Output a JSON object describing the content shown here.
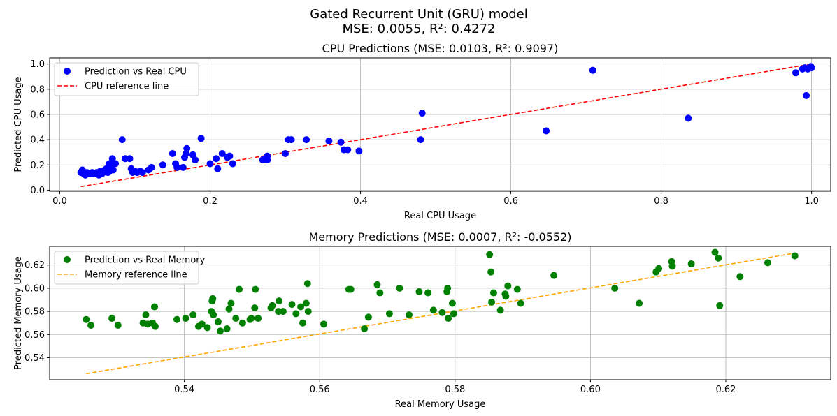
{
  "figure": {
    "suptitle_line1": "Gated Recurrent Unit (GRU) model",
    "suptitle_line2": "MSE: 0.0055, R²: 0.4272"
  },
  "chart_data": [
    {
      "type": "scatter",
      "title": "CPU Predictions (MSE: 0.0103, R²: 0.9097)",
      "xlabel": "Real CPU Usage",
      "ylabel": "Predicted CPU Usage",
      "xlim": [
        -0.0135,
        1.0255
      ],
      "ylim": [
        -0.0087,
        1.0478
      ],
      "xticks": [
        0.0,
        0.2,
        0.4,
        0.6,
        0.8,
        1.0
      ],
      "xtick_labels": [
        "0.0",
        "0.2",
        "0.4",
        "0.6",
        "0.8",
        "1.0"
      ],
      "yticks": [
        0.0,
        0.2,
        0.4,
        0.6,
        0.8,
        1.0
      ],
      "ytick_labels": [
        "0.0",
        "0.2",
        "0.4",
        "0.6",
        "0.8",
        "1.0"
      ],
      "grid": true,
      "legend_position": "upper-left",
      "series": [
        {
          "name": "Prediction vs Real CPU",
          "kind": "scatter",
          "color": "#0000ff",
          "points": [
            [
              0.028,
              0.14
            ],
            [
              0.03,
              0.16
            ],
            [
              0.032,
              0.13
            ],
            [
              0.034,
              0.12
            ],
            [
              0.036,
              0.14
            ],
            [
              0.04,
              0.13
            ],
            [
              0.043,
              0.14
            ],
            [
              0.046,
              0.13
            ],
            [
              0.049,
              0.14
            ],
            [
              0.052,
              0.12
            ],
            [
              0.054,
              0.15
            ],
            [
              0.056,
              0.13
            ],
            [
              0.058,
              0.14
            ],
            [
              0.06,
              0.15
            ],
            [
              0.062,
              0.17
            ],
            [
              0.064,
              0.14
            ],
            [
              0.066,
              0.15
            ],
            [
              0.068,
              0.18
            ],
            [
              0.07,
              0.25
            ],
            [
              0.071,
              0.16
            ],
            [
              0.074,
              0.21
            ],
            [
              0.066,
              0.21
            ],
            [
              0.06,
              0.16
            ],
            [
              0.083,
              0.4
            ],
            [
              0.087,
              0.25
            ],
            [
              0.093,
              0.25
            ],
            [
              0.095,
              0.17
            ],
            [
              0.097,
              0.14
            ],
            [
              0.1,
              0.15
            ],
            [
              0.103,
              0.14
            ],
            [
              0.107,
              0.15
            ],
            [
              0.11,
              0.14
            ],
            [
              0.118,
              0.16
            ],
            [
              0.122,
              0.18
            ],
            [
              0.137,
              0.2
            ],
            [
              0.15,
              0.29
            ],
            [
              0.154,
              0.21
            ],
            [
              0.156,
              0.18
            ],
            [
              0.164,
              0.18
            ],
            [
              0.166,
              0.26
            ],
            [
              0.168,
              0.29
            ],
            [
              0.169,
              0.33
            ],
            [
              0.177,
              0.28
            ],
            [
              0.18,
              0.24
            ],
            [
              0.188,
              0.41
            ],
            [
              0.2,
              0.21
            ],
            [
              0.208,
              0.25
            ],
            [
              0.21,
              0.17
            ],
            [
              0.216,
              0.29
            ],
            [
              0.223,
              0.26
            ],
            [
              0.226,
              0.27
            ],
            [
              0.23,
              0.21
            ],
            [
              0.27,
              0.24
            ],
            [
              0.276,
              0.27
            ],
            [
              0.276,
              0.24
            ],
            [
              0.3,
              0.29
            ],
            [
              0.304,
              0.4
            ],
            [
              0.308,
              0.4
            ],
            [
              0.328,
              0.4
            ],
            [
              0.358,
              0.39
            ],
            [
              0.374,
              0.38
            ],
            [
              0.378,
              0.32
            ],
            [
              0.383,
              0.32
            ],
            [
              0.398,
              0.31
            ],
            [
              0.48,
              0.4
            ],
            [
              0.482,
              0.61
            ],
            [
              0.647,
              0.47
            ],
            [
              0.709,
              0.95
            ],
            [
              0.836,
              0.57
            ],
            [
              0.979,
              0.93
            ],
            [
              0.988,
              0.96
            ],
            [
              0.991,
              0.97
            ],
            [
              0.993,
              0.75
            ],
            [
              0.995,
              0.96
            ],
            [
              0.997,
              0.97
            ],
            [
              0.999,
              0.98
            ],
            [
              1.0,
              0.97
            ]
          ]
        },
        {
          "name": "CPU reference line",
          "kind": "line",
          "style": "dashed",
          "color": "#ff0000",
          "points": [
            [
              0.028,
              0.028
            ],
            [
              1.0,
              1.0
            ]
          ]
        }
      ]
    },
    {
      "type": "scatter",
      "title": "Memory Predictions (MSE: 0.0007, R²: -0.0552)",
      "xlabel": "Real Memory Usage",
      "ylabel": "Predicted Memory Usage",
      "xlim": [
        0.5201,
        0.6355
      ],
      "ylim": [
        0.521,
        0.6361
      ],
      "xticks": [
        0.54,
        0.56,
        0.58,
        0.6,
        0.62
      ],
      "xtick_labels": [
        "0.54",
        "0.56",
        "0.58",
        "0.60",
        "0.62"
      ],
      "yticks": [
        0.54,
        0.56,
        0.58,
        0.6,
        0.62
      ],
      "ytick_labels": [
        "0.54",
        "0.56",
        "0.58",
        "0.60",
        "0.62"
      ],
      "grid": true,
      "legend_position": "upper-left",
      "series": [
        {
          "name": "Prediction vs Real Memory",
          "kind": "scatter",
          "color": "#008000",
          "points": [
            [
              0.5255,
              0.573
            ],
            [
              0.5262,
              0.568
            ],
            [
              0.5293,
              0.574
            ],
            [
              0.5302,
              0.568
            ],
            [
              0.5339,
              0.57
            ],
            [
              0.5343,
              0.577
            ],
            [
              0.5346,
              0.569
            ],
            [
              0.5353,
              0.57
            ],
            [
              0.5356,
              0.584
            ],
            [
              0.5357,
              0.567
            ],
            [
              0.5389,
              0.573
            ],
            [
              0.5402,
              0.574
            ],
            [
              0.5413,
              0.577
            ],
            [
              0.5421,
              0.567
            ],
            [
              0.5426,
              0.569
            ],
            [
              0.5434,
              0.566
            ],
            [
              0.544,
              0.58
            ],
            [
              0.5441,
              0.589
            ],
            [
              0.5442,
              0.591
            ],
            [
              0.5443,
              0.577
            ],
            [
              0.545,
              0.571
            ],
            [
              0.5453,
              0.563
            ],
            [
              0.5463,
              0.565
            ],
            [
              0.5466,
              0.582
            ],
            [
              0.5469,
              0.587
            ],
            [
              0.5476,
              0.574
            ],
            [
              0.5481,
              0.599
            ],
            [
              0.5486,
              0.57
            ],
            [
              0.5497,
              0.573
            ],
            [
              0.5499,
              0.574
            ],
            [
              0.5504,
              0.583
            ],
            [
              0.5505,
              0.599
            ],
            [
              0.5509,
              0.574
            ],
            [
              0.5528,
              0.583
            ],
            [
              0.553,
              0.585
            ],
            [
              0.5539,
              0.58
            ],
            [
              0.554,
              0.589
            ],
            [
              0.5546,
              0.58
            ],
            [
              0.5559,
              0.586
            ],
            [
              0.5565,
              0.578
            ],
            [
              0.5572,
              0.584
            ],
            [
              0.5575,
              0.57
            ],
            [
              0.558,
              0.587
            ],
            [
              0.5582,
              0.604
            ],
            [
              0.5583,
              0.58
            ],
            [
              0.5606,
              0.569
            ],
            [
              0.5643,
              0.599
            ],
            [
              0.5646,
              0.599
            ],
            [
              0.5666,
              0.565
            ],
            [
              0.5672,
              0.575
            ],
            [
              0.5685,
              0.603
            ],
            [
              0.5689,
              0.596
            ],
            [
              0.5703,
              0.578
            ],
            [
              0.5718,
              0.6
            ],
            [
              0.5732,
              0.577
            ],
            [
              0.5747,
              0.597
            ],
            [
              0.576,
              0.596
            ],
            [
              0.5768,
              0.581
            ],
            [
              0.5781,
              0.579
            ],
            [
              0.5788,
              0.597
            ],
            [
              0.5789,
              0.6
            ],
            [
              0.579,
              0.574
            ],
            [
              0.5796,
              0.587
            ],
            [
              0.5798,
              0.578
            ],
            [
              0.5851,
              0.629
            ],
            [
              0.5853,
              0.614
            ],
            [
              0.5854,
              0.588
            ],
            [
              0.5857,
              0.596
            ],
            [
              0.5867,
              0.581
            ],
            [
              0.5874,
              0.595
            ],
            [
              0.5875,
              0.593
            ],
            [
              0.5878,
              0.602
            ],
            [
              0.5892,
              0.599
            ],
            [
              0.5897,
              0.587
            ],
            [
              0.5946,
              0.611
            ],
            [
              0.6036,
              0.6
            ],
            [
              0.6072,
              0.587
            ],
            [
              0.6097,
              0.614
            ],
            [
              0.6101,
              0.617
            ],
            [
              0.612,
              0.623
            ],
            [
              0.6121,
              0.619
            ],
            [
              0.6149,
              0.621
            ],
            [
              0.6184,
              0.631
            ],
            [
              0.6189,
              0.626
            ],
            [
              0.6191,
              0.585
            ],
            [
              0.6221,
              0.61
            ],
            [
              0.6262,
              0.622
            ],
            [
              0.6302,
              0.628
            ]
          ]
        },
        {
          "name": "Memory reference line",
          "kind": "line",
          "style": "dashed",
          "color": "#ffa500",
          "points": [
            [
              0.5255,
              0.5262
            ],
            [
              0.6302,
              0.6303
            ]
          ]
        }
      ]
    }
  ]
}
